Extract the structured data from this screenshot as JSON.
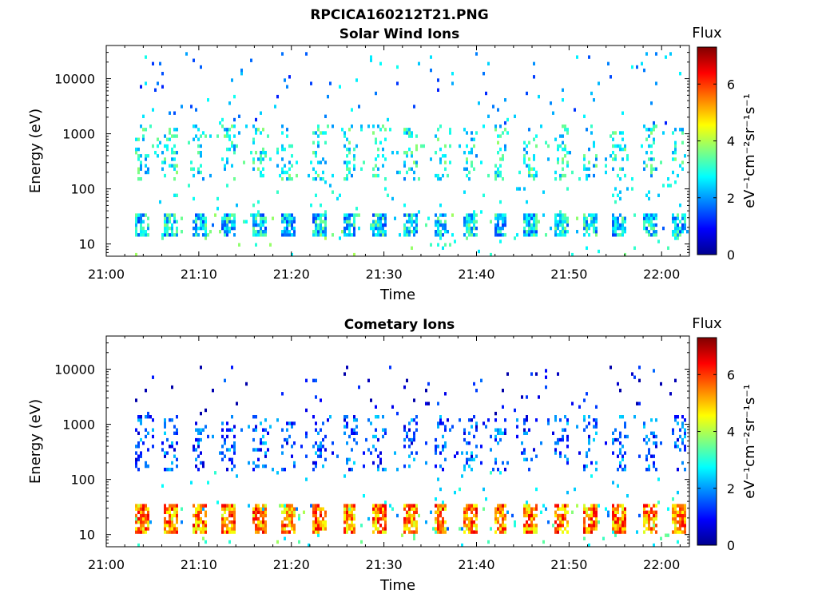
{
  "figure_title": "RPCICA160212T21.PNG",
  "chart_data": [
    {
      "type": "heatmap",
      "title": "Solar Wind Ions",
      "xlabel": "Time",
      "ylabel": "Energy (eV)",
      "x_ticks": [
        "21:00",
        "21:10",
        "21:20",
        "21:30",
        "21:40",
        "21:50",
        "22:00"
      ],
      "x_range_min": [
        0,
        63
      ],
      "y_ticks": [
        "10",
        "100",
        "1000",
        "10000"
      ],
      "y_scale": "log",
      "y_range": [
        6,
        40000
      ],
      "colorbar": {
        "title": "Flux",
        "label": "eV⁻¹cm⁻²sr⁻¹s⁻¹",
        "ticks": [
          "0",
          "2",
          "4",
          "6"
        ],
        "range": [
          0,
          7.3
        ],
        "colormap": "jet"
      },
      "bursts_min": [
        3.8,
        6.9,
        10.2,
        13.3,
        16.5,
        19.7,
        23.1,
        26.3,
        29.6,
        32.8,
        36.1,
        39.3,
        42.6,
        45.8,
        49.1,
        52.3,
        55.5,
        58.7,
        61.8
      ],
      "low_band_eV": [
        14,
        35
      ],
      "low_band_flux": 2.5,
      "mid_band_eV": [
        150,
        1500
      ],
      "mid_band_flux": 2.8,
      "high_scatter_eV": [
        1500,
        30000
      ],
      "high_scatter_flux": 2.0,
      "scatter_start_min": 3.0
    },
    {
      "type": "heatmap",
      "title": "Cometary Ions",
      "xlabel": "Time",
      "ylabel": "Energy (eV)",
      "x_ticks": [
        "21:00",
        "21:10",
        "21:20",
        "21:30",
        "21:40",
        "21:50",
        "22:00"
      ],
      "x_range_min": [
        0,
        63
      ],
      "y_ticks": [
        "10",
        "100",
        "1000",
        "10000"
      ],
      "y_scale": "log",
      "y_range": [
        6,
        40000
      ],
      "colorbar": {
        "title": "Flux",
        "label": "eV⁻¹cm⁻²sr⁻¹s⁻¹",
        "ticks": [
          "0",
          "2",
          "4",
          "6"
        ],
        "range": [
          0,
          7.3
        ],
        "colormap": "jet"
      },
      "bursts_min": [
        3.8,
        6.9,
        10.2,
        13.3,
        16.5,
        19.7,
        23.1,
        26.3,
        29.6,
        32.8,
        36.1,
        39.3,
        42.6,
        45.8,
        49.1,
        52.3,
        55.5,
        58.7,
        61.8
      ],
      "low_band_eV": [
        11,
        37
      ],
      "low_band_flux": 5.4,
      "mid_band_eV": [
        150,
        1500
      ],
      "mid_band_flux": 1.5,
      "high_scatter_eV": [
        1500,
        12000
      ],
      "high_scatter_flux": 0.8,
      "scatter_start_min": 3.0
    }
  ]
}
